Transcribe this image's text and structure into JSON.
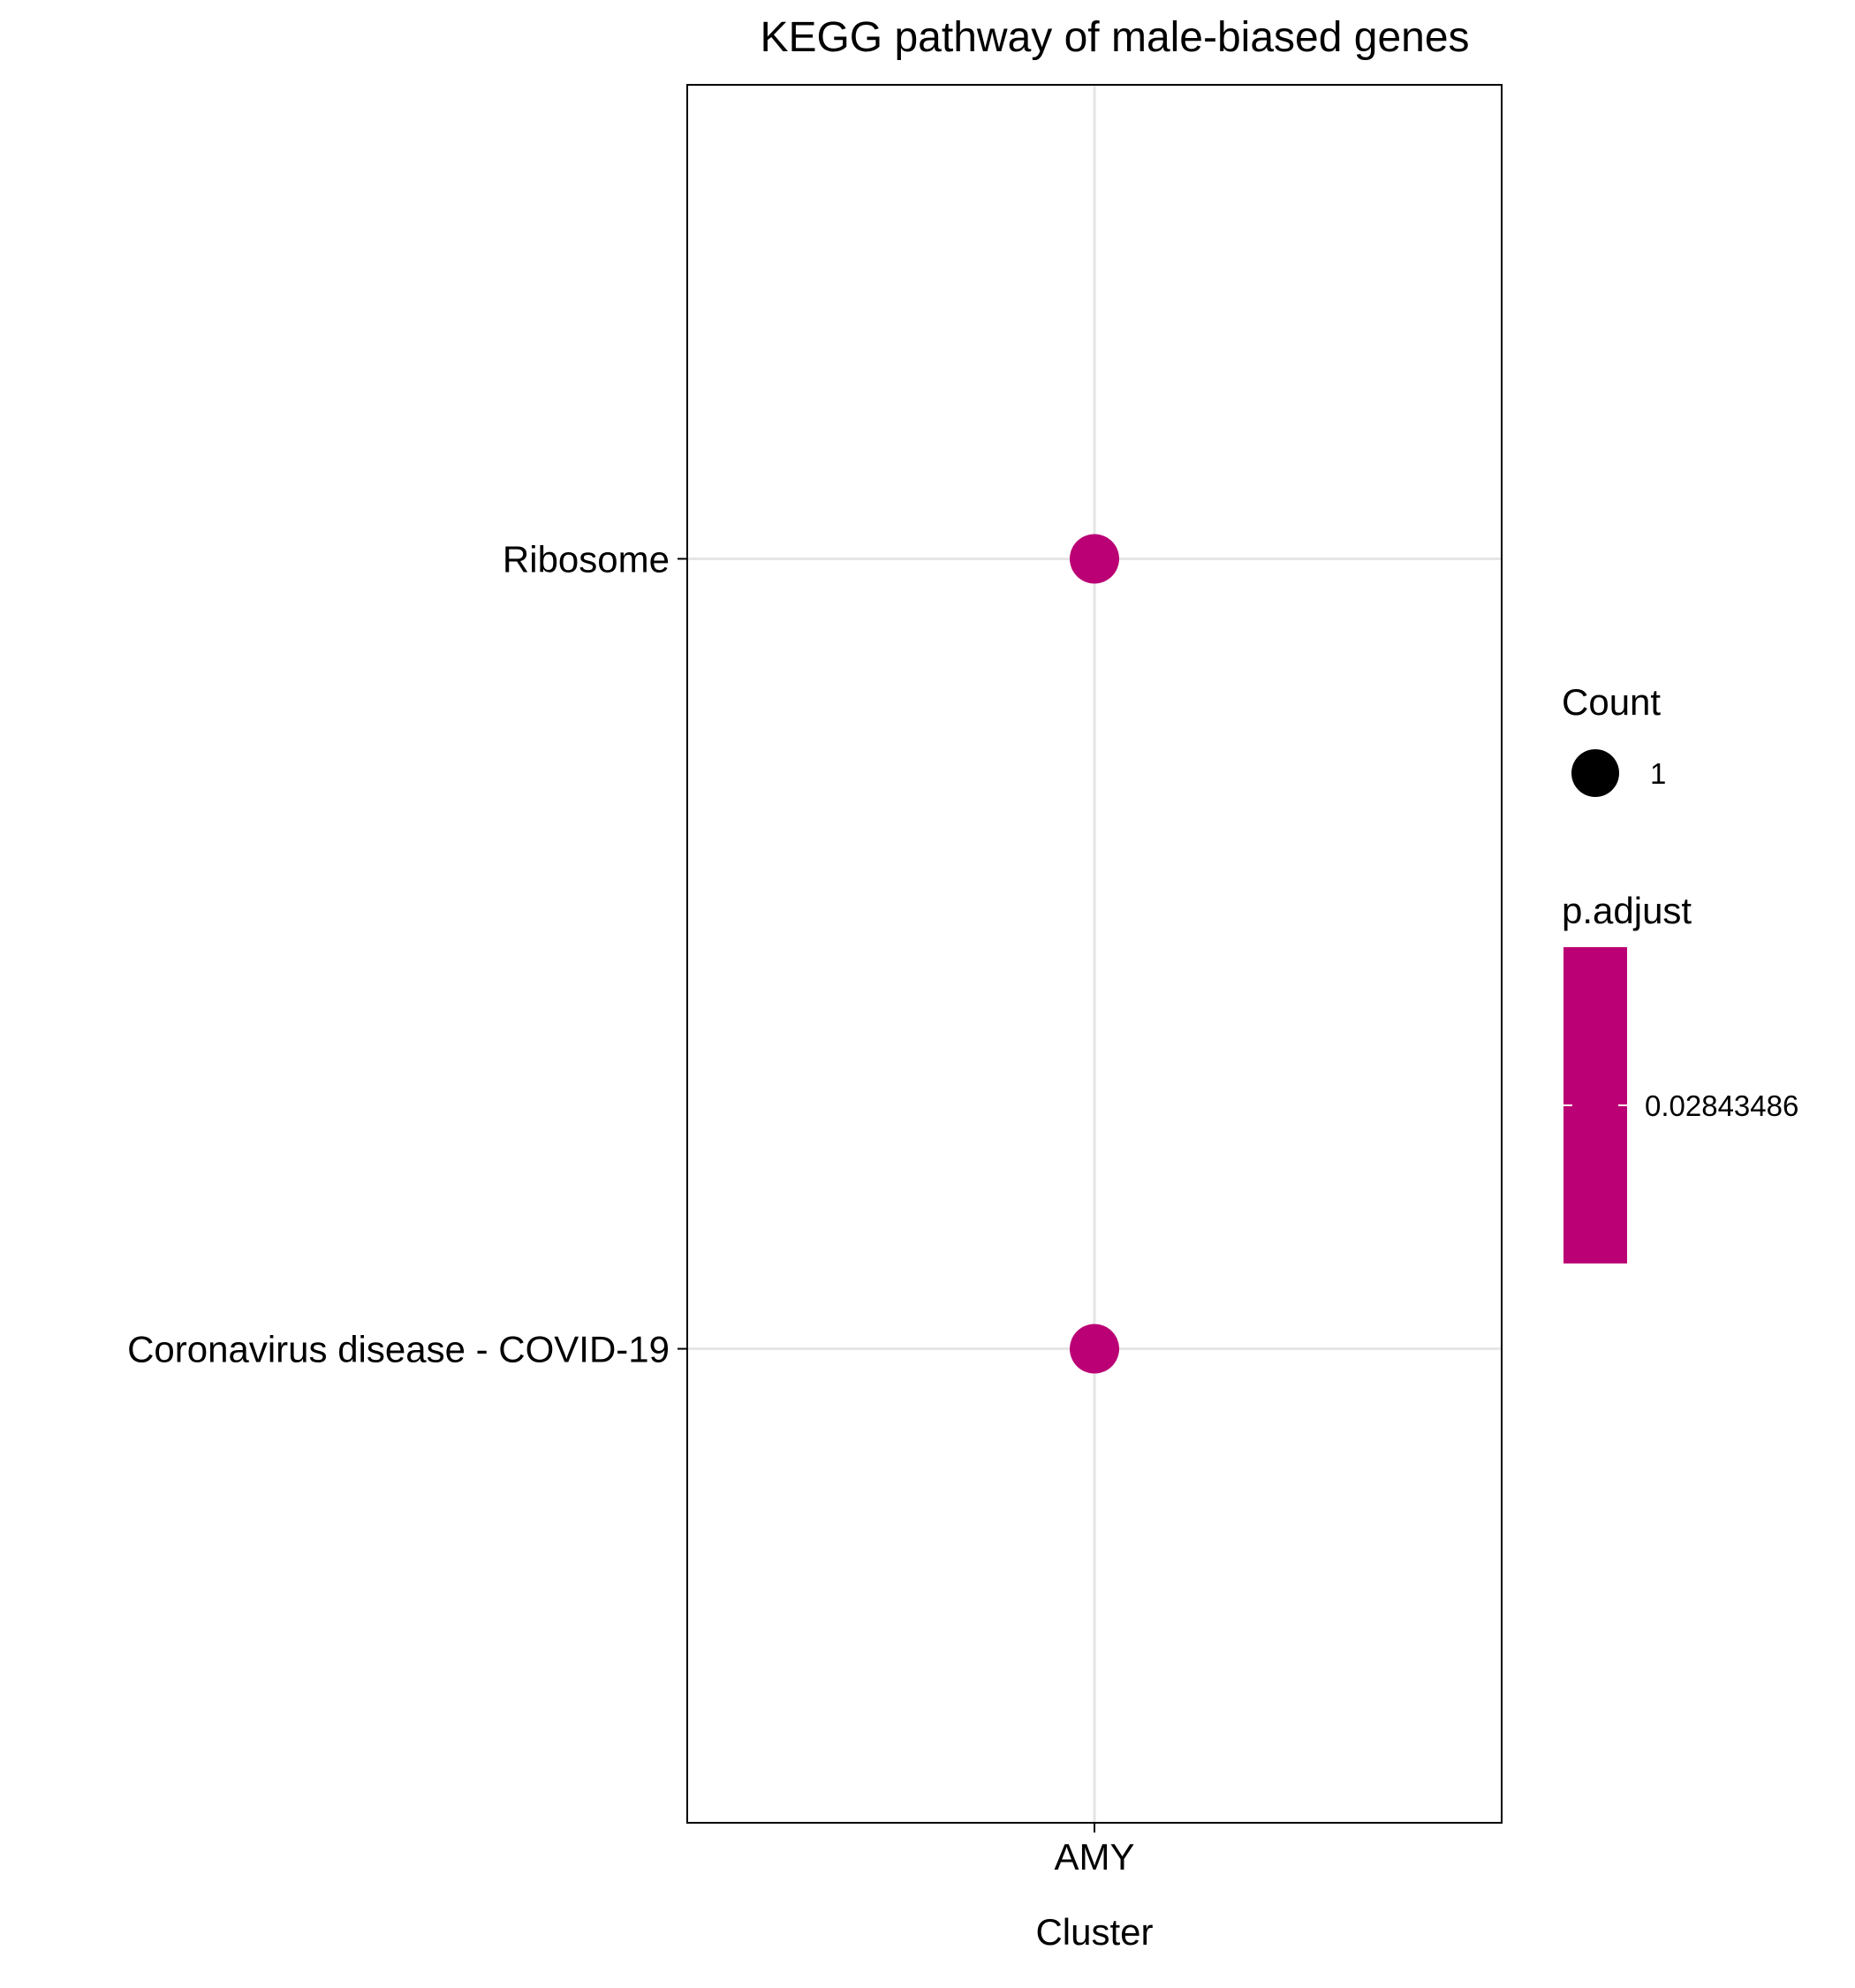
{
  "chart_data": {
    "type": "scatter",
    "title": "KEGG pathway of male-biased genes",
    "xlabel": "Cluster",
    "ylabel": "",
    "categories_x": [
      "AMY"
    ],
    "categories_y": [
      "Coronavirus disease - COVID-19",
      "Ribosome"
    ],
    "points": [
      {
        "x": "AMY",
        "y": "Ribosome",
        "count": 1,
        "p_adjust": 0.02843486
      },
      {
        "x": "AMY",
        "y": "Coronavirus disease - COVID-19",
        "count": 1,
        "p_adjust": 0.02843486
      }
    ],
    "grid": true,
    "legend_placement": "right",
    "legend": {
      "size_title": "Count",
      "size_entries": [
        "1"
      ],
      "color_title": "p.adjust",
      "color_ticks": [
        "0.02843486"
      ]
    },
    "colors": {
      "point": "#BA0074",
      "grid": "#E5E5E5",
      "panel_border": "#000000",
      "legend_dot": "#000000"
    }
  }
}
